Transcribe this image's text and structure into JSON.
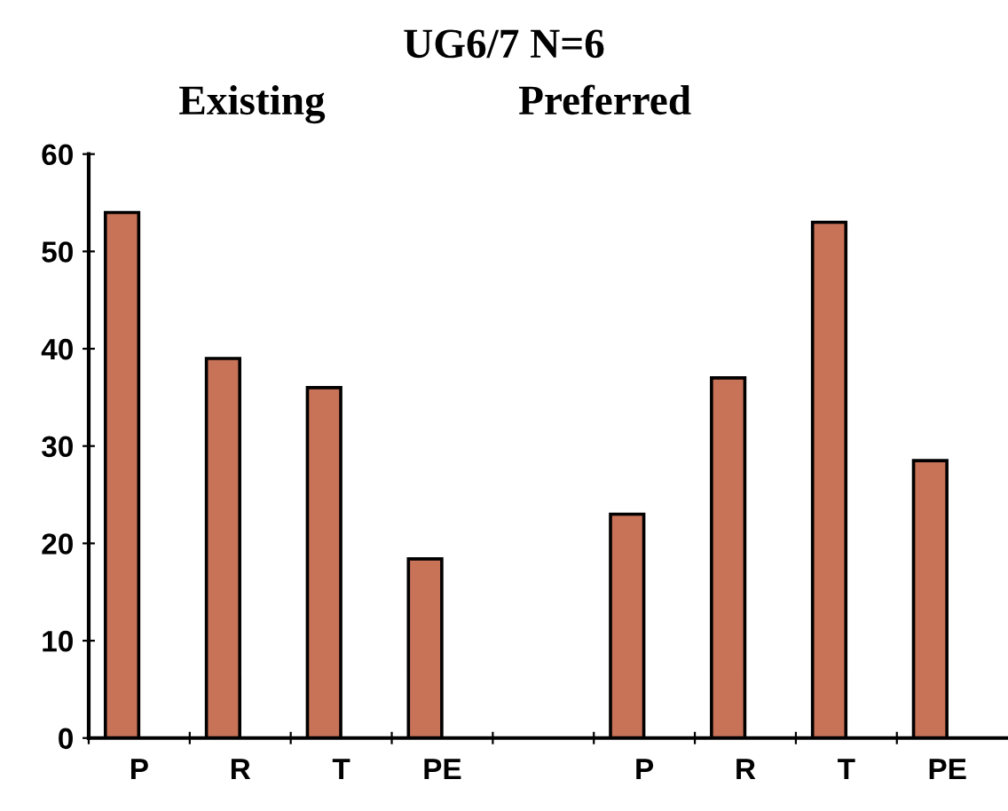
{
  "chart_data": {
    "type": "bar",
    "title": "UG6/7 N=6",
    "annotations": [
      "Existing",
      "Preferred"
    ],
    "categories": [
      "P",
      "R",
      "T",
      "PE",
      null,
      "P",
      "R",
      "T",
      "PE"
    ],
    "values": [
      54,
      39,
      36,
      18.4,
      null,
      23,
      37,
      53,
      28.5
    ],
    "color": "#c87258",
    "ylim": [
      0,
      60
    ],
    "yticks": [
      0,
      10,
      20,
      30,
      40,
      50,
      60
    ],
    "grid": false,
    "legend": false
  }
}
